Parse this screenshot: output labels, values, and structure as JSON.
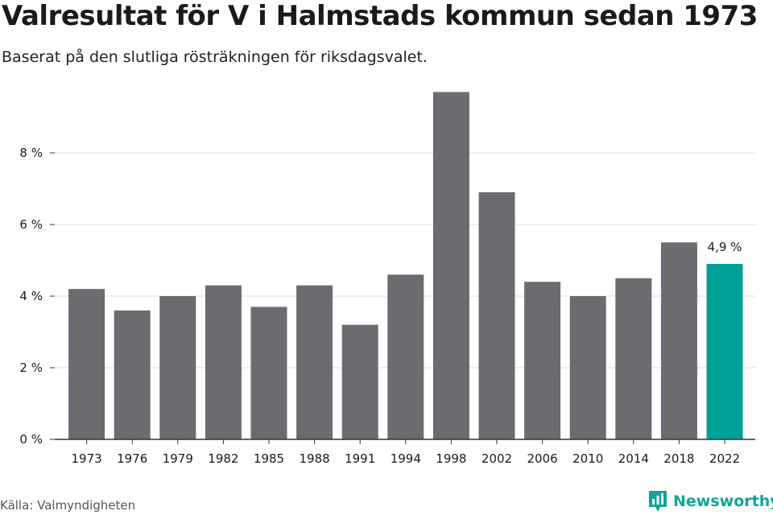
{
  "chart_data": {
    "type": "bar",
    "title": "Valresultat för V i Halmstads kommun sedan 1973",
    "subtitle": "Baserat på den slutliga rösträkningen för riksdagsvalet.",
    "categories": [
      "1973",
      "1976",
      "1979",
      "1982",
      "1985",
      "1988",
      "1991",
      "1994",
      "1998",
      "2002",
      "2006",
      "2010",
      "2014",
      "2018",
      "2022"
    ],
    "values": [
      4.2,
      3.6,
      4.0,
      4.3,
      3.7,
      4.3,
      3.2,
      4.6,
      9.7,
      6.9,
      4.4,
      4.0,
      4.5,
      5.5,
      4.9
    ],
    "ylim": [
      0,
      10
    ],
    "yticks": [
      0,
      2,
      4,
      6,
      8
    ],
    "ytick_labels": [
      "0 %",
      "2 %",
      "4 %",
      "6 %",
      "8 %"
    ],
    "highlight_index": 14,
    "highlight_label": "4,9 %",
    "grid": true,
    "colors": {
      "bar": "#6c6b70",
      "highlight": "#00a297",
      "grid": "#dddddd",
      "axis": "#333333"
    }
  },
  "footer": {
    "source": "Källa: Valmyndigheten",
    "brand": "Newsworthy",
    "brand_icon": "newsworthy-logo-icon"
  }
}
